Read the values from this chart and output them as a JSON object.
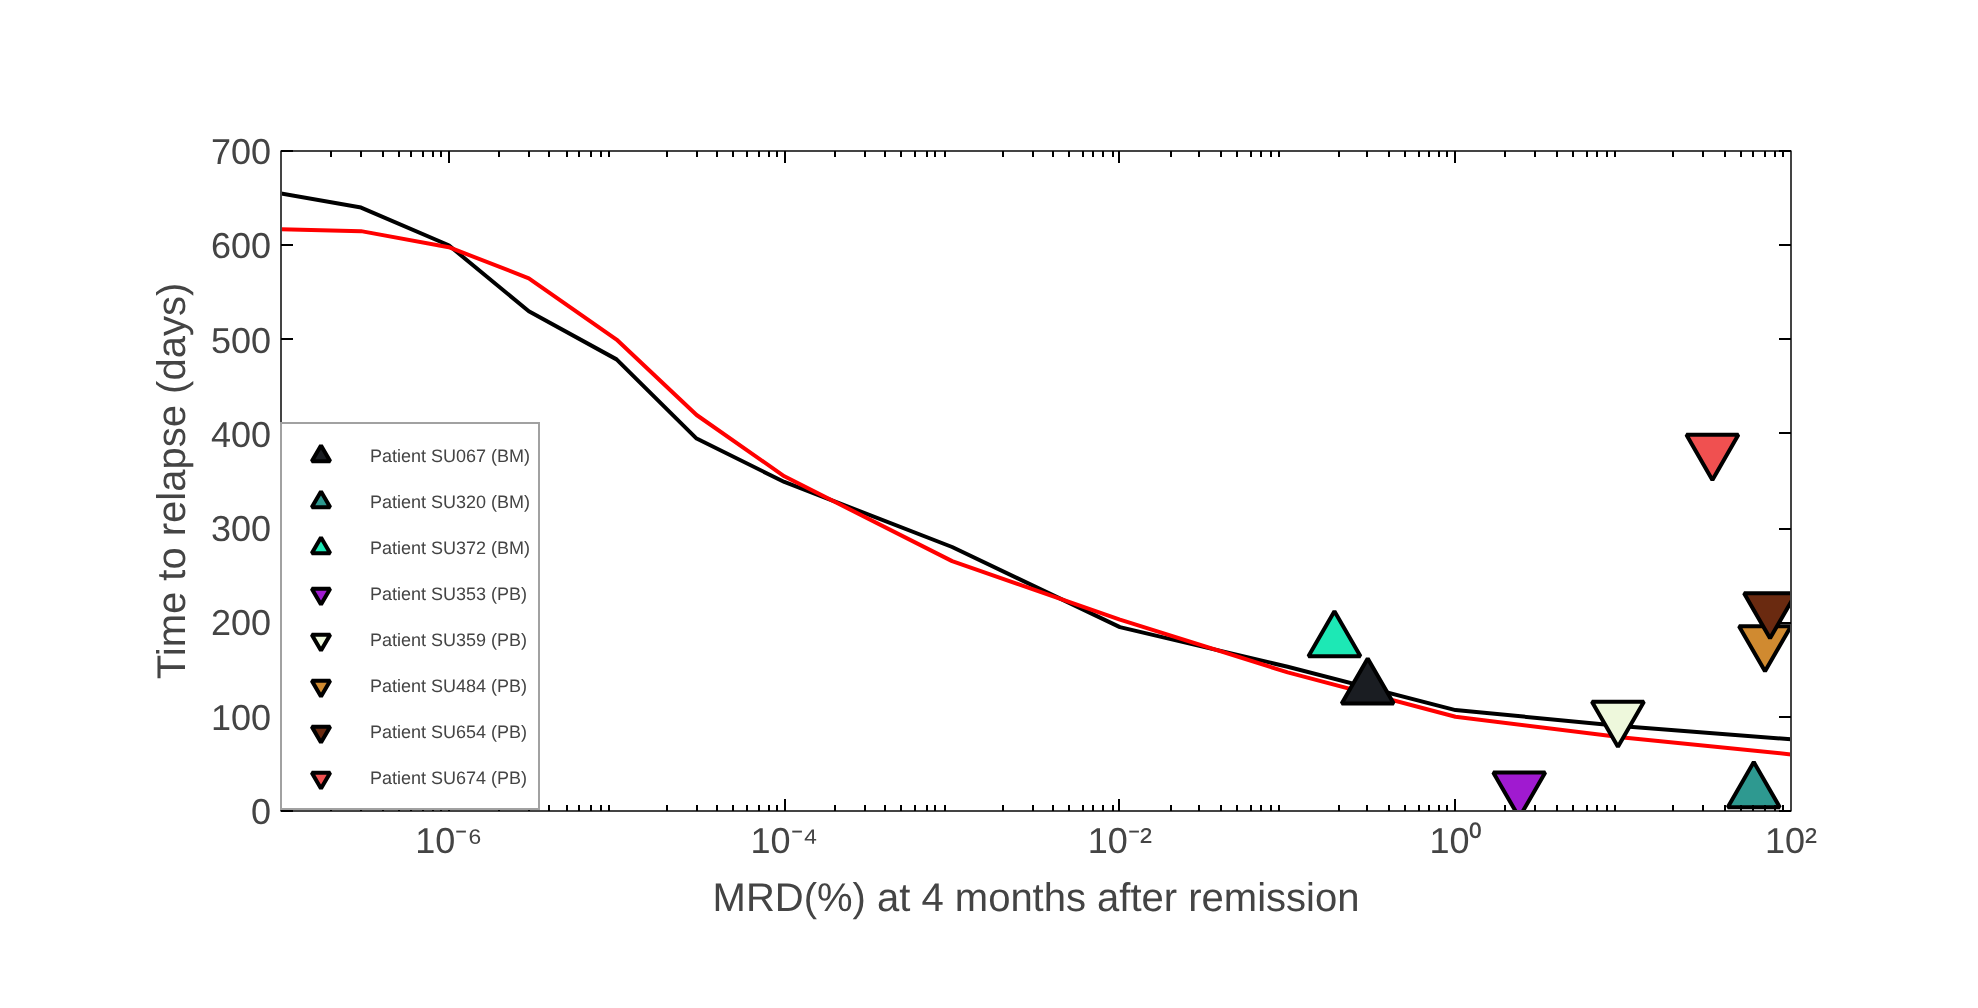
{
  "chart_data": {
    "type": "scatter",
    "xlabel": "MRD(%) at 4 months after remission",
    "ylabel": "Time to relapse (days)",
    "log": "x",
    "xlim": [
      1e-07,
      100
    ],
    "ylim": [
      0,
      700
    ],
    "xticks": [
      {
        "value": 1e-06,
        "label": "10⁻⁶"
      },
      {
        "value": 0.0001,
        "label": "10⁻⁴"
      },
      {
        "value": 0.01,
        "label": "10⁻²"
      },
      {
        "value": 1,
        "label": "10⁰"
      },
      {
        "value": 100,
        "label": "10²"
      }
    ],
    "yticks": [
      0,
      100,
      200,
      300,
      400,
      500,
      600,
      700
    ],
    "grid": false,
    "legend": "bottom left",
    "series": [
      {
        "type": "line",
        "color": "#000000",
        "marker": "none",
        "line_style": "solid",
        "x": [
          1e-07,
          3e-07,
          1e-06,
          3e-06,
          1e-05,
          3e-05,
          0.0001,
          0.001,
          0.01,
          0.1,
          1,
          10,
          100
        ],
        "values": [
          655,
          640,
          600,
          530,
          479,
          395,
          349,
          280,
          195,
          153,
          107,
          90,
          76
        ]
      },
      {
        "type": "line",
        "color": "#ff0000",
        "marker": "none",
        "line_style": "solid",
        "x": [
          1e-07,
          3e-07,
          1e-06,
          3e-06,
          1e-05,
          3e-05,
          0.0001,
          0.001,
          0.01,
          0.1,
          1,
          10,
          100
        ],
        "values": [
          617,
          615,
          598,
          565,
          500,
          420,
          355,
          265,
          203,
          147,
          100,
          78,
          60
        ]
      },
      {
        "name": "Patient SU067 (BM)",
        "color": "#1a1d22",
        "marker": "triangle",
        "x": [
          0.3
        ],
        "values": [
          130
        ]
      },
      {
        "name": "Patient SU320 (BM)",
        "color": "#2e9990",
        "marker": "triangle",
        "x": [
          60
        ],
        "values": [
          20
        ]
      },
      {
        "name": "Patient SU372 (BM)",
        "color": "#1de8b5",
        "marker": "triangle",
        "x": [
          0.19
        ],
        "values": [
          180
        ]
      },
      {
        "name": "Patient SU353 (PB)",
        "color": "#a01ad0",
        "x": [
          2.4
        ],
        "values": [
          25
        ]
      },
      {
        "name": "Patient SU359 (PB)",
        "color": "#eef8dc",
        "x": [
          9.3
        ],
        "values": [
          100
        ]
      },
      {
        "name": "Patient SU484 (PB)",
        "color": "#d08a30",
        "x": [
          70
        ],
        "values": [
          180
        ]
      },
      {
        "name": "Patient SU654 (PB)",
        "color": "#6a2a10",
        "x": [
          75
        ],
        "values": [
          215
        ]
      },
      {
        "name": "Patient SU674 (PB)",
        "color": "#f05050",
        "x": [
          34
        ],
        "values": [
          383
        ]
      }
    ]
  }
}
